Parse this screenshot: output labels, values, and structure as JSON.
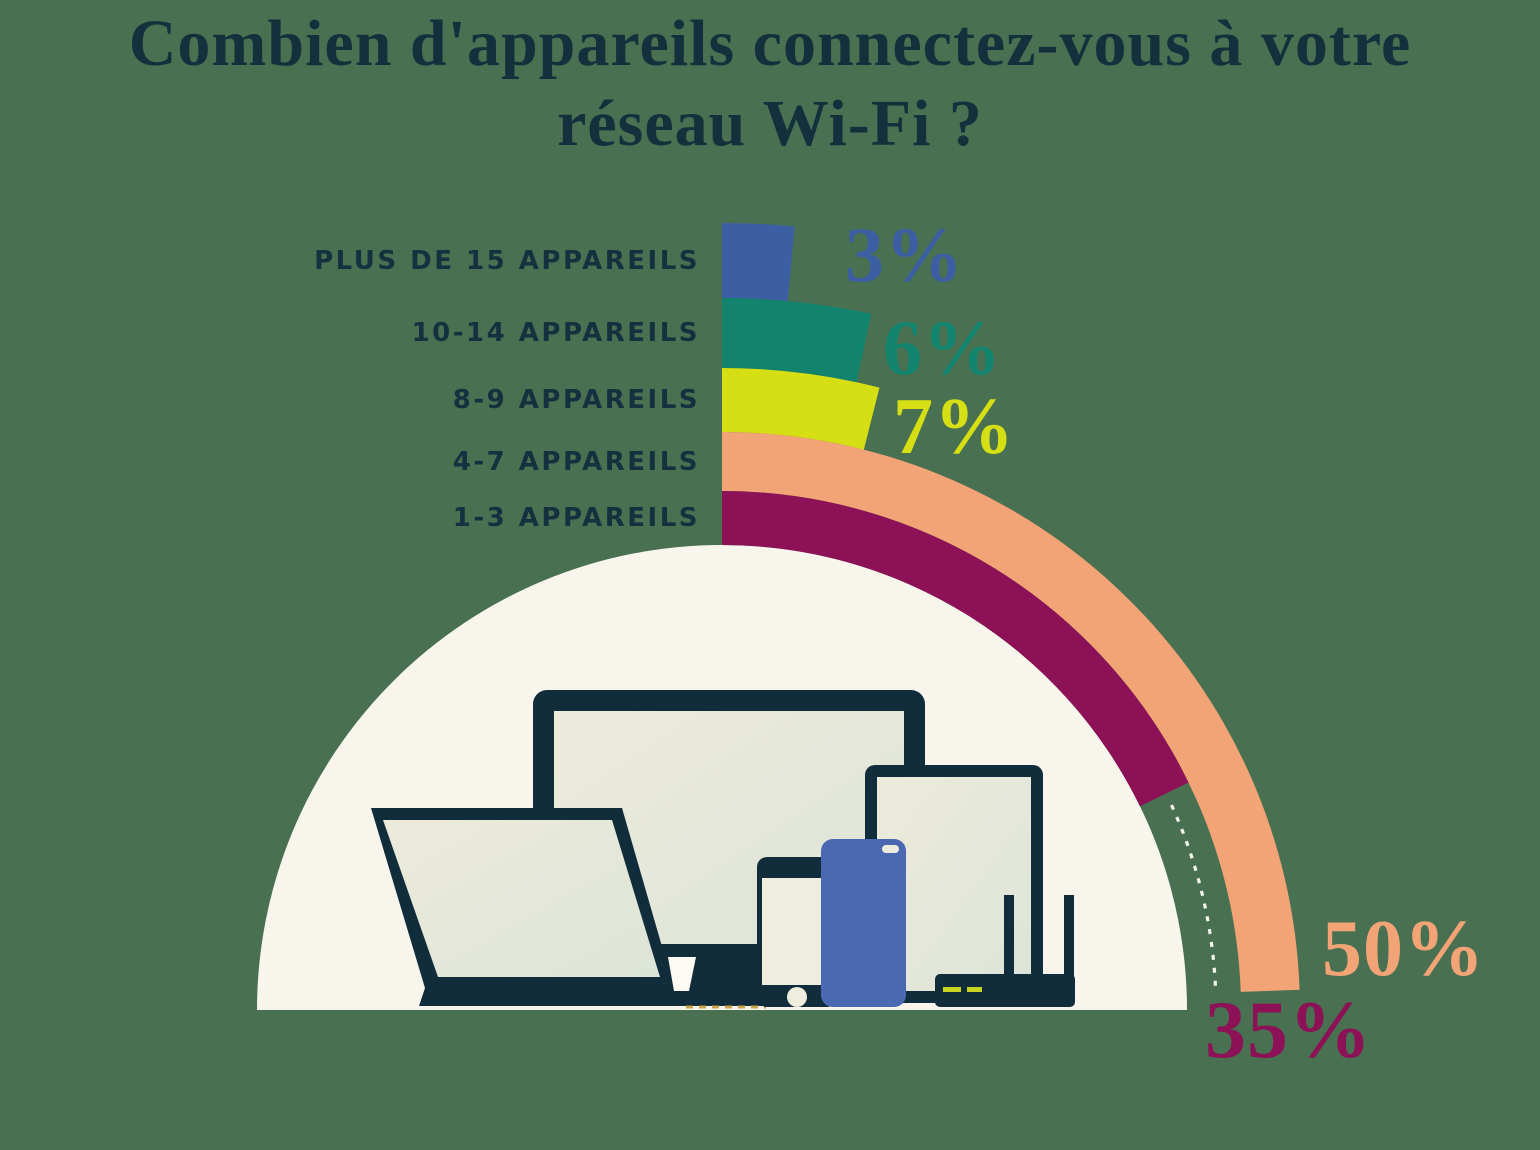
{
  "title": {
    "line1": "Combien d'appareils connectez-vous à votre",
    "line2": "réseau Wi-Fi ?"
  },
  "chart_data": {
    "type": "radial_bar",
    "title": "Combien d'appareils connectez-vous à votre réseau Wi-Fi ?",
    "unit": "%",
    "scale_hint": "half-turn (180deg) represents 100%; bars start at 12 o'clock and sweep clockwise",
    "legend_position": "left-labels",
    "grid": false,
    "categories": [
      "PLUS DE 15 APPAREILS",
      "10-14 APPAREILS",
      "8-9 APPAREILS",
      "4-7 APPAREILS",
      "1-3 APPAREILS"
    ],
    "values": [
      3,
      6,
      7,
      50,
      35
    ],
    "items": [
      {
        "label": "PLUS DE 15 APPAREILS",
        "value": 3,
        "value_label": "3%",
        "color": "#3C5FA4"
      },
      {
        "label": "10-14 APPAREILS",
        "value": 6,
        "value_label": "6%",
        "color": "#12846E"
      },
      {
        "label": "8-9 APPAREILS",
        "value": 7,
        "value_label": "7%",
        "color": "#D5DF13"
      },
      {
        "label": "4-7 APPAREILS",
        "value": 50,
        "value_label": "50%",
        "color": "#F3A476"
      },
      {
        "label": "1-3 APPAREILS",
        "value": 35,
        "value_label": "35%",
        "color": "#8C1156"
      }
    ]
  },
  "illustration": {
    "description": "Connected devices sitting inside a cream half-circle",
    "devices": [
      "laptop",
      "desktop-monitor",
      "tablet",
      "smartphone",
      "smartphone-blue",
      "wifi-router"
    ]
  },
  "colors": {
    "background": "#497050",
    "title_text": "#14303D",
    "label_text": "#15313F",
    "device_navy": "#112D3B",
    "semicircle_beige": "#F7F5EC",
    "screen_light": "#EDEBDB",
    "screen_dark": "#DCE4D8",
    "screen_flat": "#EFEDDD",
    "phone_blue": "#4B68B2",
    "router_led": "#C8D41F",
    "stand_cream": "#FCFAF2",
    "laptop_gold_trim": "#C9A548",
    "dotted_leader": "#F6F4EC"
  }
}
